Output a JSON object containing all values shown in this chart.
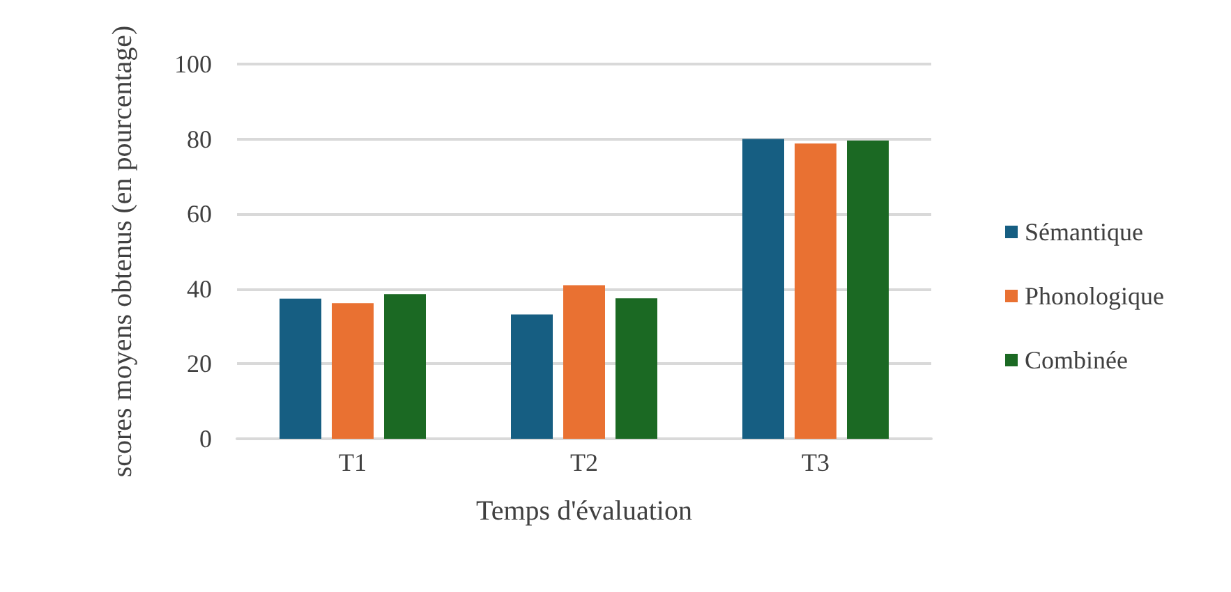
{
  "chart_data": {
    "type": "bar",
    "xlabel": "Temps d'évaluation",
    "ylabel": "scores moyens obtenus (en pourcentage)",
    "categories": [
      "T1",
      "T2",
      "T3"
    ],
    "series": [
      {
        "name": "Sémantique",
        "color": "#165e82",
        "values": [
          37.4,
          33.2,
          80
        ]
      },
      {
        "name": "Phonologique",
        "color": "#e97132",
        "values": [
          36.2,
          41,
          78.8
        ]
      },
      {
        "name": "Combinée",
        "color": "#1b6923",
        "values": [
          38.6,
          37.5,
          79.6
        ]
      }
    ],
    "ylim": [
      0,
      100
    ],
    "yticks": [
      0,
      20,
      40,
      60,
      80,
      100
    ],
    "grid": "y",
    "legend": "right"
  }
}
